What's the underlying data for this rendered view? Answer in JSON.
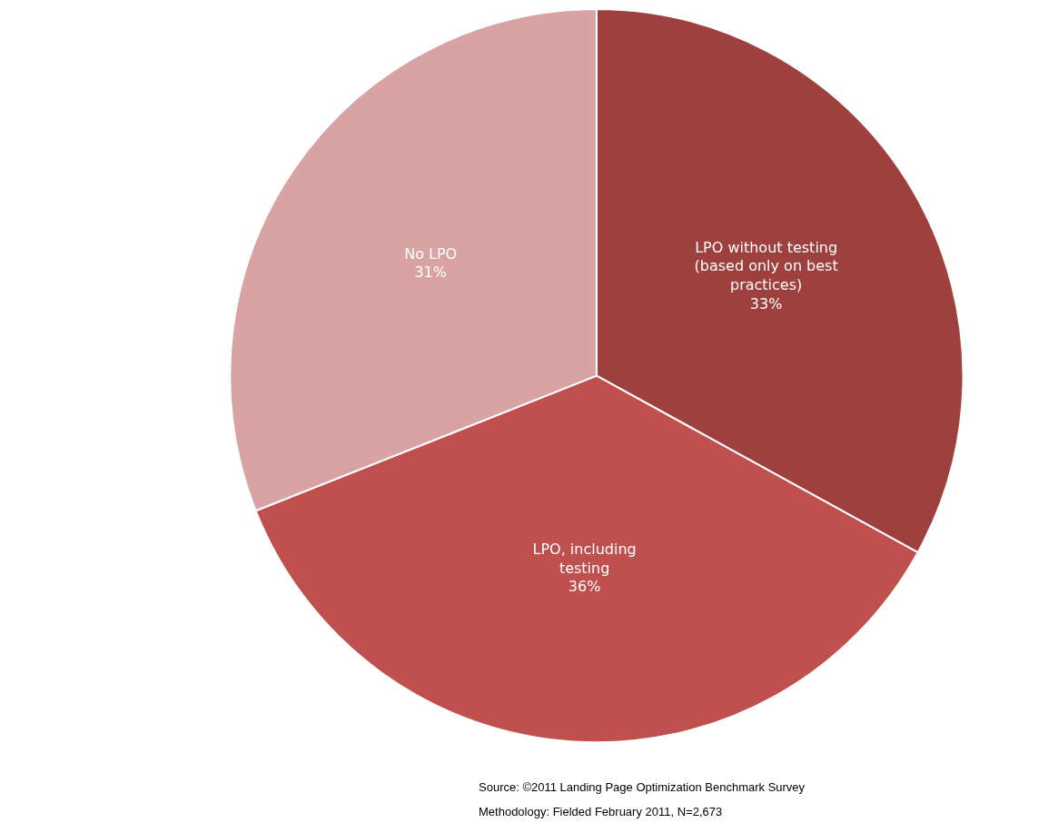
{
  "chart_data": {
    "type": "pie",
    "categories": [
      "LPO without testing (based only on best practices)",
      "LPO, including testing",
      "No LPO"
    ],
    "values": [
      33,
      36,
      31
    ],
    "value_labels": [
      "33%",
      "36%",
      "31%"
    ],
    "colors": [
      "#9e403d",
      "#c0504d",
      "#d9a3a3"
    ],
    "legend": false,
    "annotations": [
      "Source: ©2011 Landing Page Optimization Benchmark Survey",
      "Methodology: Fielded February 2011, N=2,673"
    ]
  }
}
